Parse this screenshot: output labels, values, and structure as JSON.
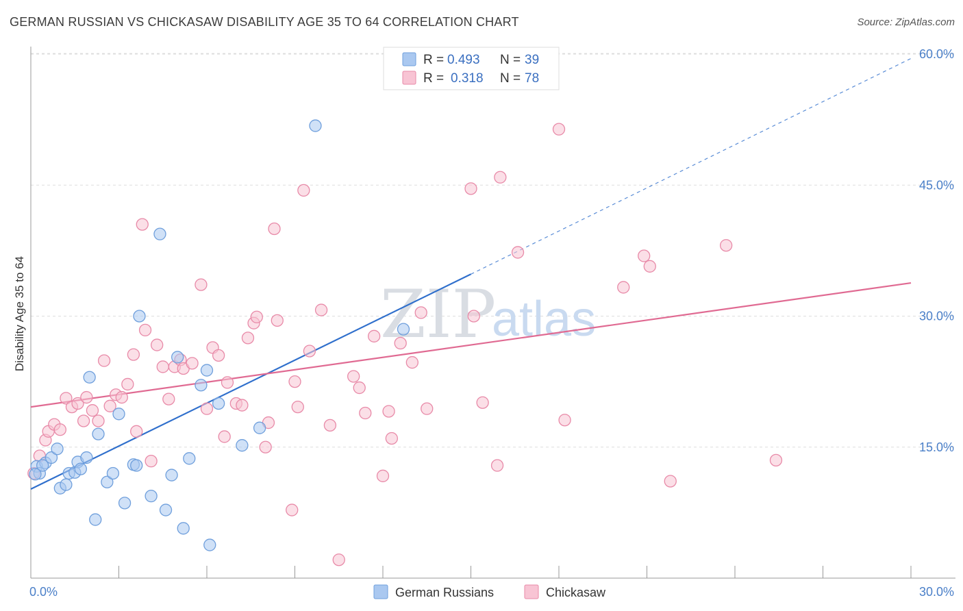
{
  "title": "GERMAN RUSSIAN VS CHICKASAW DISABILITY AGE 35 TO 64 CORRELATION CHART",
  "source": "Source: ZipAtlas.com",
  "watermark": {
    "zip": "ZIP",
    "atlas": "atlas"
  },
  "colors": {
    "blue_fill": "#aac8f0",
    "blue_stroke": "#6f9fdc",
    "blue_line": "#2f6fcc",
    "pink_fill": "#f8c4d4",
    "pink_stroke": "#e88aa8",
    "pink_line": "#e06a92",
    "axis_label": "#4a7fc8",
    "grid": "#dddddd"
  },
  "legend": {
    "rows": [
      {
        "r_label": "R =",
        "r_value": "0.493",
        "n_label": "N =",
        "n_value": "39"
      },
      {
        "r_label": "R =",
        "r_value": "0.318",
        "n_label": "N =",
        "n_value": "78"
      }
    ]
  },
  "bottom_legend": [
    "German Russians",
    "Chickasaw"
  ],
  "chart_data": {
    "type": "scatter",
    "title": "GERMAN RUSSIAN VS CHICKASAW DISABILITY AGE 35 TO 64 CORRELATION CHART",
    "xlabel": "",
    "ylabel": "Disability Age 35 to 64",
    "xlim": [
      0,
      30
    ],
    "ylim": [
      0,
      61
    ],
    "x_tick_labels": [
      "0.0%",
      "30.0%"
    ],
    "y_ticks": [
      15,
      30,
      45,
      60
    ],
    "y_tick_labels": [
      "15.0%",
      "30.0%",
      "45.0%",
      "60.0%"
    ],
    "grid": true,
    "legend_position": "top-center",
    "series": [
      {
        "name": "German Russians",
        "R": 0.493,
        "N": 39,
        "trend": {
          "x0": 0,
          "y0": 10.2,
          "x1": 15,
          "y1": 34.8,
          "dashed_to_x": 30,
          "dashed_to_y": 59.5
        },
        "points": [
          [
            0.2,
            12.8
          ],
          [
            0.3,
            12.0
          ],
          [
            0.5,
            13.2
          ],
          [
            0.7,
            13.8
          ],
          [
            0.9,
            14.8
          ],
          [
            1.0,
            10.3
          ],
          [
            1.2,
            10.7
          ],
          [
            1.3,
            12.0
          ],
          [
            1.5,
            12.1
          ],
          [
            1.6,
            13.3
          ],
          [
            1.7,
            12.5
          ],
          [
            1.9,
            13.8
          ],
          [
            2.0,
            23.0
          ],
          [
            2.2,
            6.7
          ],
          [
            2.3,
            16.5
          ],
          [
            2.6,
            11.0
          ],
          [
            2.8,
            12.0
          ],
          [
            3.0,
            18.8
          ],
          [
            3.2,
            8.6
          ],
          [
            3.5,
            13.0
          ],
          [
            3.6,
            12.9
          ],
          [
            3.7,
            30.0
          ],
          [
            4.1,
            9.4
          ],
          [
            4.4,
            39.4
          ],
          [
            4.6,
            7.8
          ],
          [
            4.8,
            11.8
          ],
          [
            5.0,
            25.3
          ],
          [
            5.2,
            5.7
          ],
          [
            5.4,
            13.7
          ],
          [
            5.8,
            22.1
          ],
          [
            6.0,
            23.8
          ],
          [
            6.1,
            3.8
          ],
          [
            6.4,
            20.0
          ],
          [
            7.2,
            15.2
          ],
          [
            7.8,
            17.2
          ],
          [
            9.7,
            51.8
          ],
          [
            12.7,
            28.5
          ],
          [
            0.4,
            12.9
          ],
          [
            0.15,
            11.9
          ]
        ]
      },
      {
        "name": "Chickasaw",
        "R": 0.318,
        "N": 78,
        "trend": {
          "x0": 0,
          "y0": 19.6,
          "x1": 30,
          "y1": 33.8
        },
        "points": [
          [
            0.1,
            12.0
          ],
          [
            0.3,
            14.0
          ],
          [
            0.5,
            15.8
          ],
          [
            0.6,
            16.8
          ],
          [
            0.8,
            17.6
          ],
          [
            1.0,
            17.0
          ],
          [
            1.2,
            20.6
          ],
          [
            1.4,
            19.6
          ],
          [
            1.6,
            20.0
          ],
          [
            1.8,
            18.0
          ],
          [
            1.9,
            20.7
          ],
          [
            2.1,
            19.2
          ],
          [
            2.3,
            18.0
          ],
          [
            2.5,
            24.9
          ],
          [
            2.7,
            19.7
          ],
          [
            2.9,
            21.0
          ],
          [
            3.1,
            20.7
          ],
          [
            3.3,
            22.2
          ],
          [
            3.5,
            25.6
          ],
          [
            3.6,
            16.8
          ],
          [
            3.8,
            40.5
          ],
          [
            3.9,
            28.4
          ],
          [
            4.1,
            13.4
          ],
          [
            4.3,
            26.7
          ],
          [
            4.5,
            24.2
          ],
          [
            4.7,
            20.5
          ],
          [
            4.9,
            24.2
          ],
          [
            5.1,
            25.0
          ],
          [
            5.2,
            24.0
          ],
          [
            5.5,
            24.6
          ],
          [
            5.8,
            33.6
          ],
          [
            6.0,
            19.4
          ],
          [
            6.2,
            26.4
          ],
          [
            6.4,
            25.5
          ],
          [
            6.6,
            16.2
          ],
          [
            6.7,
            22.4
          ],
          [
            7.0,
            20.0
          ],
          [
            7.2,
            19.8
          ],
          [
            7.4,
            27.5
          ],
          [
            7.6,
            29.2
          ],
          [
            7.7,
            29.9
          ],
          [
            8.0,
            15.0
          ],
          [
            8.1,
            17.8
          ],
          [
            8.3,
            40.0
          ],
          [
            8.4,
            29.5
          ],
          [
            8.9,
            7.8
          ],
          [
            9.0,
            22.5
          ],
          [
            9.1,
            19.6
          ],
          [
            9.3,
            44.4
          ],
          [
            9.5,
            26.0
          ],
          [
            9.9,
            30.7
          ],
          [
            10.2,
            17.5
          ],
          [
            10.5,
            2.1
          ],
          [
            11.0,
            23.1
          ],
          [
            11.2,
            21.8
          ],
          [
            11.4,
            18.9
          ],
          [
            11.7,
            27.7
          ],
          [
            12.0,
            11.7
          ],
          [
            12.2,
            19.1
          ],
          [
            12.3,
            16.0
          ],
          [
            12.6,
            26.9
          ],
          [
            13.0,
            24.7
          ],
          [
            13.3,
            30.4
          ],
          [
            13.5,
            19.4
          ],
          [
            15.0,
            44.6
          ],
          [
            15.1,
            30.0
          ],
          [
            15.4,
            20.1
          ],
          [
            15.9,
            12.9
          ],
          [
            16.0,
            45.9
          ],
          [
            16.6,
            37.3
          ],
          [
            18.0,
            51.4
          ],
          [
            18.2,
            18.1
          ],
          [
            20.2,
            33.3
          ],
          [
            20.9,
            36.9
          ],
          [
            21.1,
            35.7
          ],
          [
            21.8,
            11.1
          ],
          [
            23.7,
            38.1
          ],
          [
            25.4,
            13.5
          ]
        ]
      }
    ]
  }
}
